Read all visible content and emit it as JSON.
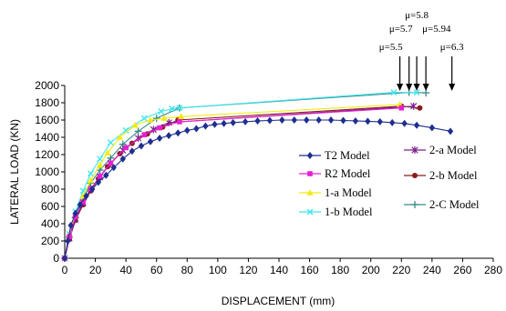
{
  "chart_data": {
    "type": "line",
    "title": "",
    "xlabel": "DISPLACEMENT (mm)",
    "ylabel": "LATERAL LOAD (KN)",
    "xlim": [
      0,
      280
    ],
    "ylim": [
      0,
      2000
    ],
    "xticks": [
      "0",
      "20",
      "40",
      "60",
      "80",
      "100",
      "120",
      "140",
      "160",
      "180",
      "200",
      "220",
      "240",
      "260",
      "280"
    ],
    "yticks": [
      "0",
      "200",
      "400",
      "600",
      "800",
      "1000",
      "1200",
      "1400",
      "1600",
      "1800",
      "2000"
    ],
    "grid": false,
    "series": [
      {
        "name": "T2 Model",
        "color": "#1f2f8f",
        "marker": "diamond",
        "x": [
          0,
          2,
          4,
          7,
          10,
          14,
          18,
          22,
          27,
          32,
          38,
          44,
          50,
          56,
          62,
          68,
          74,
          80,
          86,
          92,
          98,
          104,
          110,
          118,
          126,
          134,
          142,
          150,
          158,
          166,
          174,
          182,
          190,
          198,
          206,
          214,
          222,
          230,
          240,
          252
        ],
        "y": [
          0,
          200,
          380,
          520,
          620,
          720,
          800,
          880,
          960,
          1050,
          1150,
          1240,
          1300,
          1350,
          1390,
          1420,
          1450,
          1480,
          1500,
          1530,
          1550,
          1560,
          1570,
          1580,
          1590,
          1595,
          1600,
          1600,
          1600,
          1600,
          1600,
          1595,
          1590,
          1585,
          1580,
          1570,
          1560,
          1540,
          1510,
          1470
        ]
      },
      {
        "name": "R2 Model",
        "color": "#e81fd0",
        "marker": "square",
        "x": [
          0,
          3,
          7,
          12,
          17,
          23,
          30,
          40,
          52,
          62,
          75,
          220
        ],
        "y": [
          0,
          250,
          480,
          650,
          800,
          950,
          1100,
          1280,
          1430,
          1510,
          1580,
          1740
        ]
      },
      {
        "name": "1-a Model",
        "color": "#f2ea12",
        "marker": "triangle",
        "x": [
          0,
          3,
          7,
          12,
          17,
          23,
          28,
          36,
          46,
          56,
          65,
          76,
          219
        ],
        "y": [
          0,
          270,
          510,
          720,
          900,
          1080,
          1220,
          1400,
          1540,
          1600,
          1620,
          1640,
          1780
        ]
      },
      {
        "name": "1-b Model",
        "color": "#3fe6ee",
        "marker": "x",
        "x": [
          0,
          3,
          7,
          12,
          17,
          23,
          30,
          40,
          52,
          63,
          70,
          75,
          215,
          230
        ],
        "y": [
          0,
          280,
          540,
          780,
          980,
          1150,
          1340,
          1480,
          1620,
          1700,
          1730,
          1740,
          1920,
          1920
        ]
      },
      {
        "name": "2-a Model",
        "color": "#7a1f8c",
        "marker": "asterisk",
        "x": [
          0,
          3,
          7,
          12,
          17,
          23,
          30,
          38,
          48,
          58,
          68,
          228
        ],
        "y": [
          0,
          230,
          450,
          640,
          800,
          940,
          1100,
          1250,
          1390,
          1490,
          1570,
          1760
        ]
      },
      {
        "name": "2-b Model",
        "color": "#8b1a1a",
        "marker": "circle",
        "x": [
          0,
          3,
          7,
          12,
          17,
          22,
          28,
          36,
          44,
          54,
          64,
          74,
          220,
          232
        ],
        "y": [
          0,
          220,
          440,
          620,
          780,
          920,
          1060,
          1210,
          1330,
          1440,
          1520,
          1600,
          1760,
          1740
        ]
      },
      {
        "name": "2-C Model",
        "color": "#3a8a8a",
        "marker": "plus",
        "x": [
          0,
          3,
          7,
          12,
          17,
          23,
          30,
          38,
          48,
          60,
          75,
          225,
          236
        ],
        "y": [
          0,
          240,
          470,
          680,
          870,
          1020,
          1160,
          1320,
          1470,
          1620,
          1740,
          1920,
          1915
        ]
      }
    ],
    "annotations": [
      {
        "label": "μ=5.5",
        "x": 219
      },
      {
        "label": "μ=5.7",
        "x": 225
      },
      {
        "label": "μ=5.8",
        "x": 230
      },
      {
        "label": "μ=5.94",
        "x": 236
      },
      {
        "label": "μ=6.3",
        "x": 253
      }
    ],
    "legend": {
      "placement": "center-right"
    }
  }
}
